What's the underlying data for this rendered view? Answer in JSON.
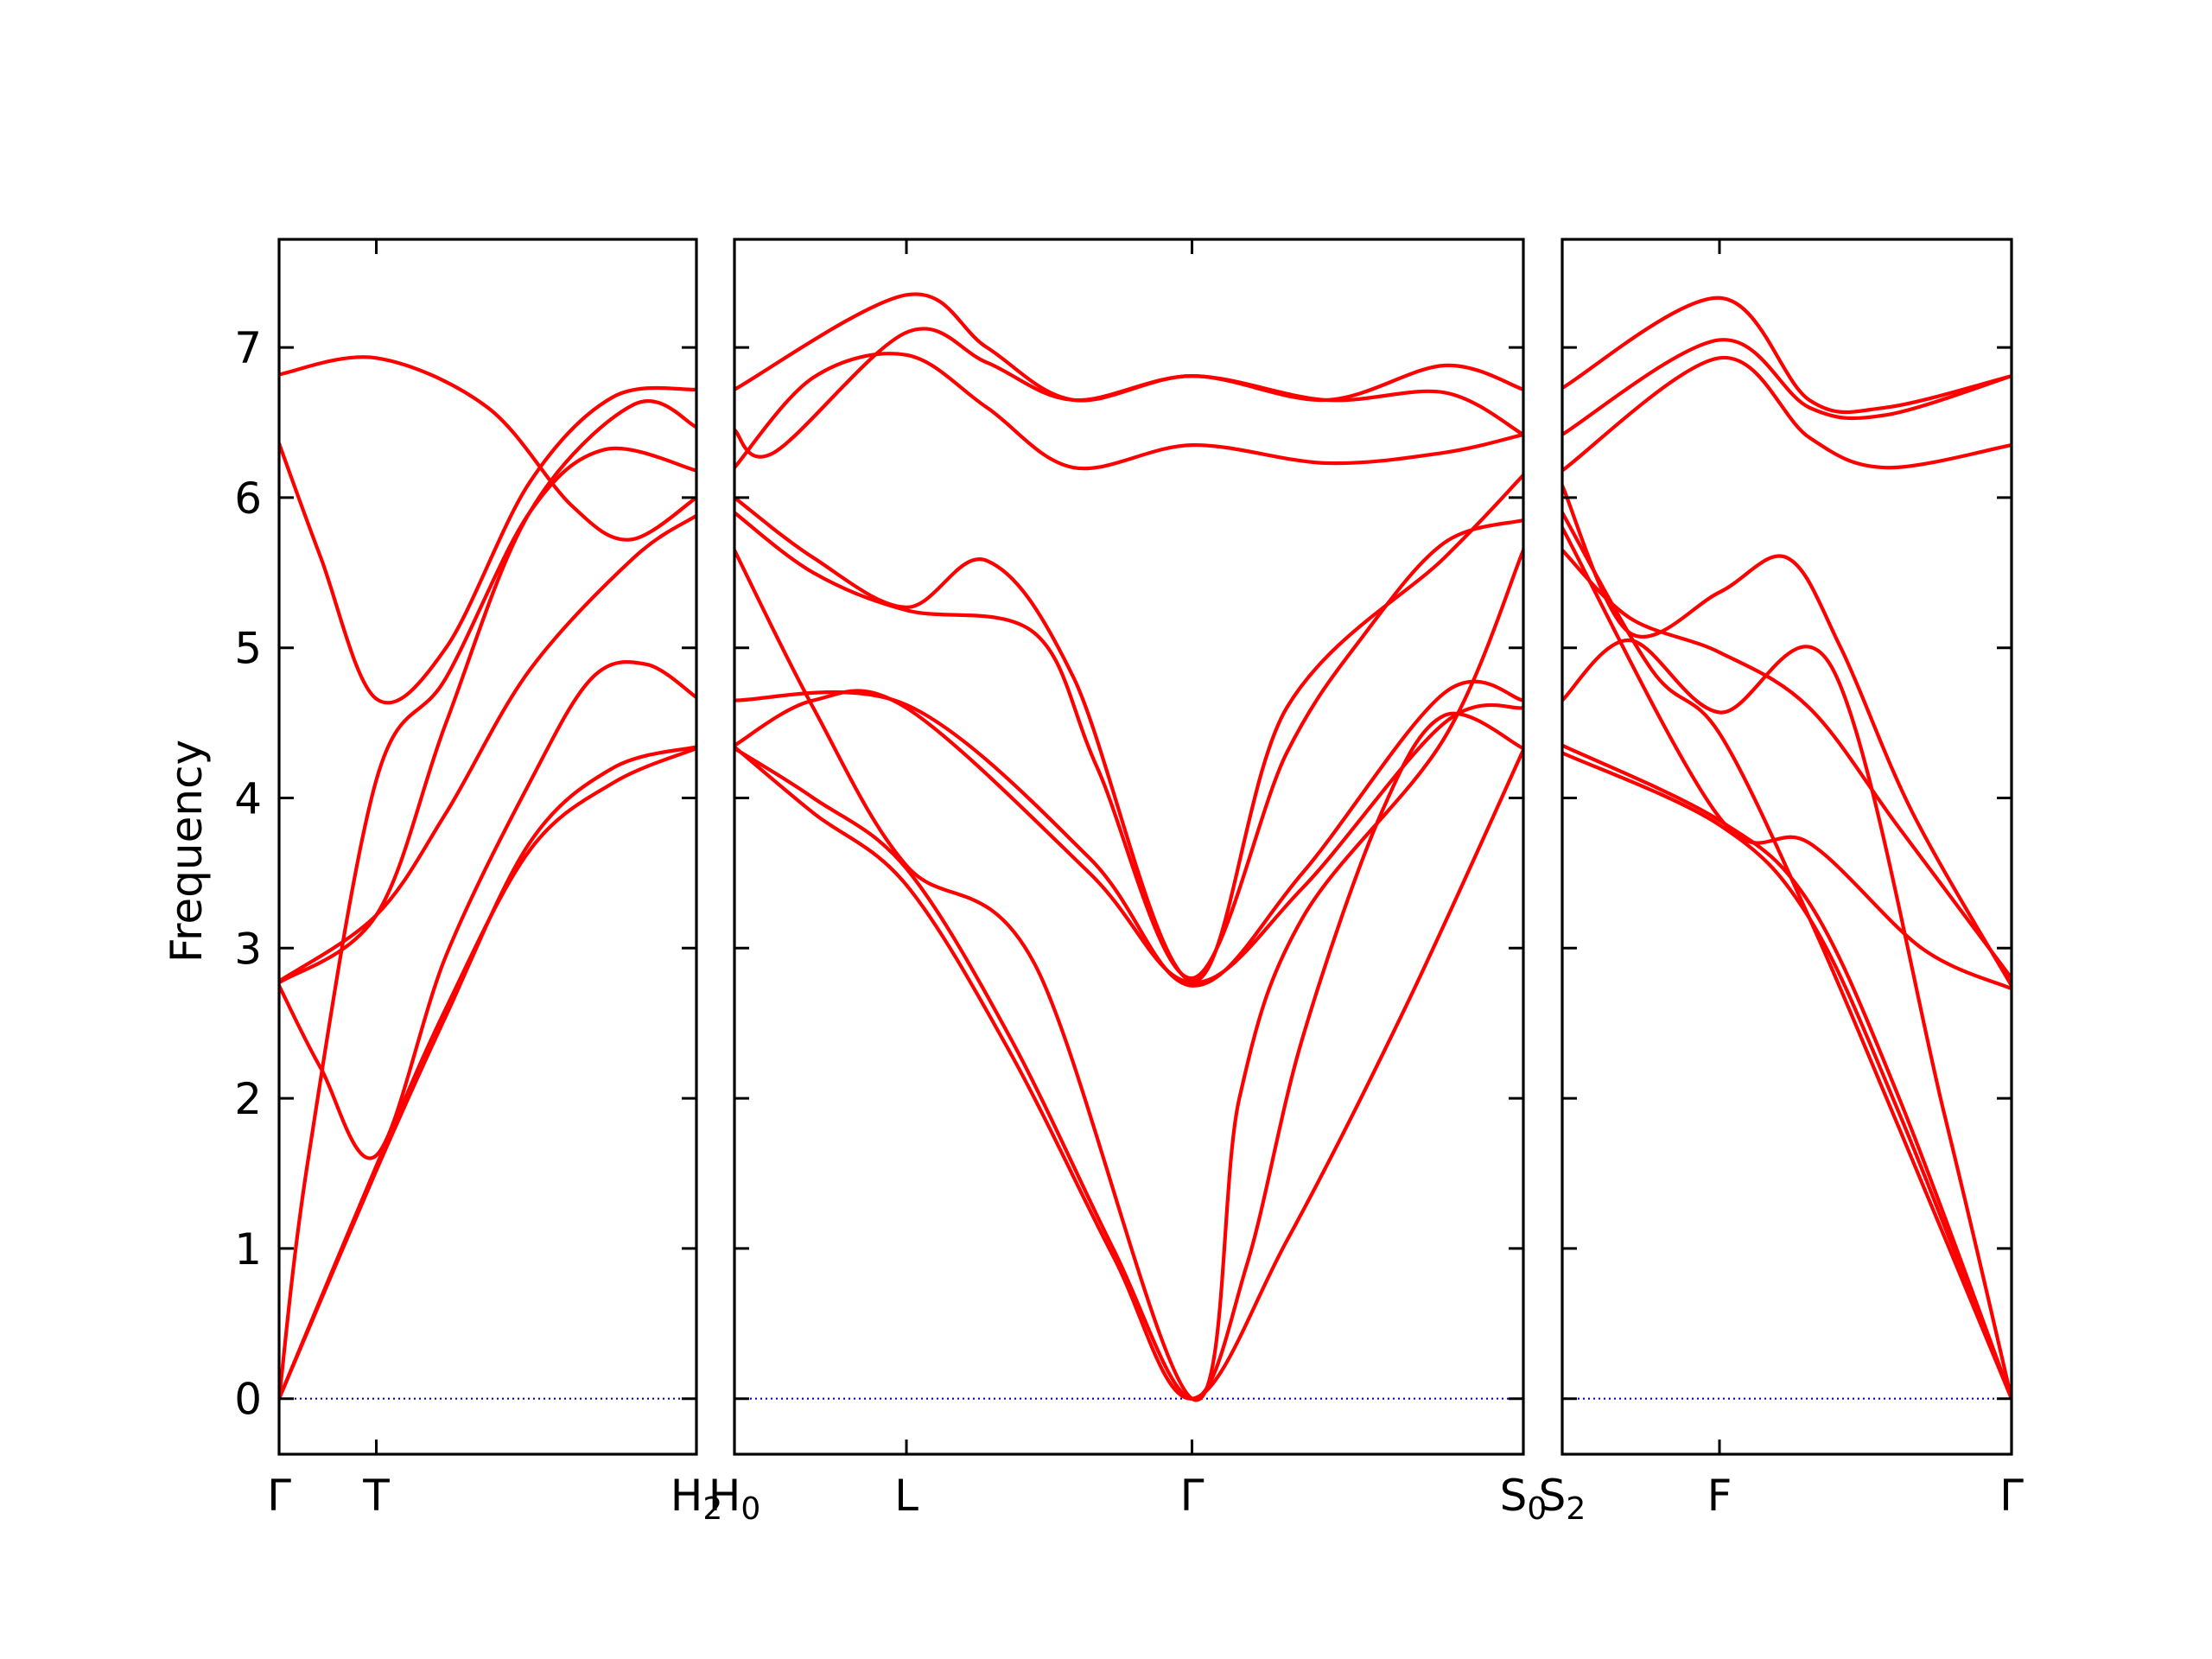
{
  "chart_data": {
    "type": "line",
    "title": "",
    "ylabel": "Frequency",
    "ylim": [
      -0.37,
      7.72
    ],
    "yticks": [
      0,
      1,
      2,
      3,
      4,
      5,
      6,
      7
    ],
    "colors": {
      "bands": "#ff0000",
      "zero_line": "#0000cc",
      "frame": "#000000"
    },
    "zero_line": {
      "style": "dotted",
      "y": 0
    },
    "panels": [
      {
        "xlim": [
          0,
          1
        ],
        "xticks": [
          {
            "x": 0,
            "base": "Γ",
            "sub": ""
          },
          {
            "x": 0.233,
            "base": "T",
            "sub": ""
          },
          {
            "x": 1,
            "base": "H",
            "sub": "2"
          }
        ],
        "bands": [
          [
            [
              0,
              0
            ],
            [
              0.233,
              1.52
            ],
            [
              0.4,
              2.55
            ],
            [
              0.6,
              3.7
            ],
            [
              0.8,
              4.2
            ],
            [
              1,
              4.34
            ]
          ],
          [
            [
              0,
              0
            ],
            [
              0.233,
              1.55
            ],
            [
              0.4,
              2.6
            ],
            [
              0.6,
              3.65
            ],
            [
              0.8,
              4.1
            ],
            [
              1,
              4.33
            ]
          ],
          [
            [
              0,
              2.75
            ],
            [
              0.1,
              2.2
            ],
            [
              0.233,
              1.62
            ],
            [
              0.4,
              2.95
            ],
            [
              0.6,
              4.1
            ],
            [
              0.75,
              4.8
            ],
            [
              0.88,
              4.89
            ],
            [
              1,
              4.67
            ]
          ],
          [
            [
              0,
              2.78
            ],
            [
              0.233,
              3.22
            ],
            [
              0.4,
              3.9
            ],
            [
              0.6,
              4.85
            ],
            [
              0.85,
              5.6
            ],
            [
              1,
              5.88
            ]
          ],
          [
            [
              0,
              0
            ],
            [
              0.07,
              1.6
            ],
            [
              0.233,
              4.12
            ],
            [
              0.4,
              4.8
            ],
            [
              0.6,
              5.9
            ],
            [
              0.78,
              6.32
            ],
            [
              1,
              6.18
            ]
          ],
          [
            [
              0,
              2.77
            ],
            [
              0.233,
              3.22
            ],
            [
              0.4,
              4.5
            ],
            [
              0.6,
              5.9
            ],
            [
              0.85,
              6.62
            ],
            [
              1,
              6.47
            ]
          ],
          [
            [
              0,
              6.36
            ],
            [
              0.1,
              5.6
            ],
            [
              0.233,
              4.66
            ],
            [
              0.4,
              5.0
            ],
            [
              0.6,
              6.1
            ],
            [
              0.8,
              6.67
            ],
            [
              1,
              6.72
            ]
          ],
          [
            [
              0,
              6.82
            ],
            [
              0.233,
              6.93
            ],
            [
              0.5,
              6.6
            ],
            [
              0.7,
              5.95
            ],
            [
              0.84,
              5.72
            ],
            [
              1,
              6.0
            ]
          ]
        ]
      },
      {
        "xlim": [
          0,
          1
        ],
        "xticks": [
          {
            "x": 0,
            "base": "H",
            "sub": "0"
          },
          {
            "x": 0.218,
            "base": "L",
            "sub": ""
          },
          {
            "x": 0.58,
            "base": "Γ",
            "sub": ""
          },
          {
            "x": 1,
            "base": "S",
            "sub": "0"
          }
        ],
        "bands": [
          [
            [
              0,
              4.34
            ],
            [
              0.1,
              3.9
            ],
            [
              0.218,
              3.42
            ],
            [
              0.35,
              2.3
            ],
            [
              0.48,
              0.95
            ],
            [
              0.58,
              0
            ],
            [
              0.7,
              1.05
            ],
            [
              0.85,
              2.6
            ],
            [
              1,
              4.32
            ]
          ],
          [
            [
              0,
              4.33
            ],
            [
              0.1,
              4.0
            ],
            [
              0.218,
              3.53
            ],
            [
              0.35,
              2.4
            ],
            [
              0.48,
              1.0
            ],
            [
              0.58,
              0
            ],
            [
              0.65,
              0.9
            ],
            [
              0.72,
              2.4
            ],
            [
              0.82,
              3.9
            ],
            [
              0.9,
              4.55
            ],
            [
              1,
              4.33
            ]
          ],
          [
            [
              0,
              5.65
            ],
            [
              0.1,
              4.6
            ],
            [
              0.218,
              3.55
            ],
            [
              0.38,
              2.9
            ],
            [
              0.58,
              0
            ],
            [
              0.64,
              2.0
            ],
            [
              0.72,
              3.2
            ],
            [
              0.9,
              4.4
            ],
            [
              1,
              5.65
            ]
          ],
          [
            [
              0,
              4.65
            ],
            [
              0.218,
              4.62
            ],
            [
              0.45,
              3.6
            ],
            [
              0.58,
              2.75
            ],
            [
              0.72,
              3.5
            ],
            [
              0.9,
              4.7
            ],
            [
              1,
              4.65
            ]
          ],
          [
            [
              0,
              4.35
            ],
            [
              0.1,
              4.65
            ],
            [
              0.218,
              4.6
            ],
            [
              0.45,
              3.5
            ],
            [
              0.58,
              2.77
            ],
            [
              0.72,
              3.4
            ],
            [
              0.9,
              4.5
            ],
            [
              1,
              4.6
            ]
          ],
          [
            [
              0,
              5.9
            ],
            [
              0.1,
              5.5
            ],
            [
              0.218,
              5.25
            ],
            [
              0.38,
              5.1
            ],
            [
              0.46,
              4.2
            ],
            [
              0.58,
              2.8
            ],
            [
              0.7,
              4.3
            ],
            [
              0.8,
              5.1
            ],
            [
              0.9,
              5.7
            ],
            [
              1,
              5.85
            ]
          ],
          [
            [
              0,
              6.0
            ],
            [
              0.1,
              5.6
            ],
            [
              0.218,
              5.27
            ],
            [
              0.32,
              5.58
            ],
            [
              0.43,
              4.8
            ],
            [
              0.58,
              2.78
            ],
            [
              0.7,
              4.6
            ],
            [
              0.9,
              5.6
            ],
            [
              1,
              6.15
            ]
          ],
          [
            [
              0,
              6.2
            ],
            [
              0.1,
              6.8
            ],
            [
              0.218,
              6.95
            ],
            [
              0.32,
              6.6
            ],
            [
              0.43,
              6.2
            ],
            [
              0.58,
              6.35
            ],
            [
              0.75,
              6.23
            ],
            [
              0.9,
              6.3
            ],
            [
              1,
              6.42
            ]
          ],
          [
            [
              0,
              6.45
            ],
            [
              0.05,
              6.3
            ],
            [
              0.218,
              7.1
            ],
            [
              0.32,
              6.9
            ],
            [
              0.43,
              6.65
            ],
            [
              0.58,
              6.81
            ],
            [
              0.75,
              6.65
            ],
            [
              0.9,
              6.7
            ],
            [
              1,
              6.42
            ]
          ],
          [
            [
              0,
              6.72
            ],
            [
              0.218,
              7.35
            ],
            [
              0.32,
              7.0
            ],
            [
              0.43,
              6.65
            ],
            [
              0.58,
              6.81
            ],
            [
              0.75,
              6.65
            ],
            [
              0.9,
              6.88
            ],
            [
              1,
              6.72
            ]
          ]
        ]
      },
      {
        "xlim": [
          0,
          1
        ],
        "xticks": [
          {
            "x": 0,
            "base": "S",
            "sub": "2"
          },
          {
            "x": 0.35,
            "base": "F",
            "sub": ""
          },
          {
            "x": 1,
            "base": "Γ",
            "sub": ""
          }
        ],
        "bands": [
          [
            [
              0,
              4.35
            ],
            [
              0.35,
              3.85
            ],
            [
              0.55,
              3.3
            ],
            [
              0.75,
              2.0
            ],
            [
              1,
              0
            ]
          ],
          [
            [
              0,
              4.3
            ],
            [
              0.35,
              3.82
            ],
            [
              0.55,
              3.2
            ],
            [
              0.75,
              1.9
            ],
            [
              1,
              0
            ]
          ],
          [
            [
              0,
              5.9
            ],
            [
              0.2,
              4.85
            ],
            [
              0.35,
              4.43
            ],
            [
              0.55,
              3.2
            ],
            [
              0.75,
              1.8
            ],
            [
              1,
              0
            ]
          ],
          [
            [
              0,
              4.65
            ],
            [
              0.15,
              5.05
            ],
            [
              0.35,
              4.57
            ],
            [
              0.6,
              4.87
            ],
            [
              0.85,
              1.9
            ],
            [
              1,
              0
            ]
          ],
          [
            [
              0,
              5.65
            ],
            [
              0.15,
              5.2
            ],
            [
              0.35,
              4.97
            ],
            [
              0.55,
              4.6
            ],
            [
              0.75,
              3.8
            ],
            [
              1,
              2.8
            ]
          ],
          [
            [
              0,
              5.8
            ],
            [
              0.35,
              3.87
            ],
            [
              0.55,
              3.7
            ],
            [
              0.8,
              3.0
            ],
            [
              1,
              2.73
            ]
          ],
          [
            [
              0,
              6.08
            ],
            [
              0.15,
              5.1
            ],
            [
              0.35,
              5.37
            ],
            [
              0.5,
              5.6
            ],
            [
              0.62,
              5.0
            ],
            [
              0.78,
              3.9
            ],
            [
              1,
              2.75
            ]
          ],
          [
            [
              0,
              6.18
            ],
            [
              0.35,
              6.93
            ],
            [
              0.55,
              6.4
            ],
            [
              0.72,
              6.2
            ],
            [
              1,
              6.35
            ]
          ],
          [
            [
              0,
              6.42
            ],
            [
              0.35,
              7.05
            ],
            [
              0.55,
              6.6
            ],
            [
              0.72,
              6.55
            ],
            [
              1,
              6.81
            ]
          ],
          [
            [
              0,
              6.73
            ],
            [
              0.35,
              7.33
            ],
            [
              0.55,
              6.65
            ],
            [
              0.72,
              6.6
            ],
            [
              1,
              6.81
            ]
          ]
        ]
      }
    ]
  }
}
